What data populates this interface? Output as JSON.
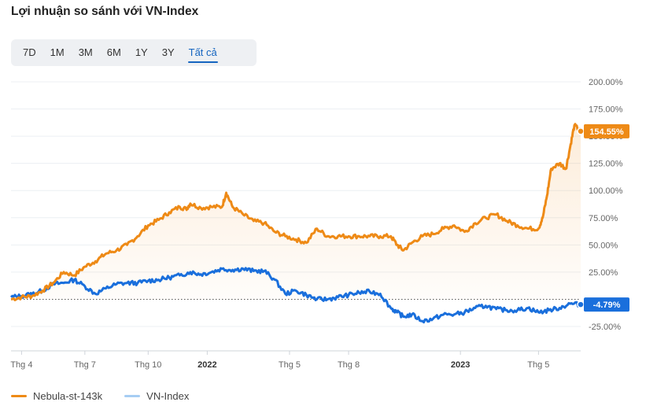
{
  "title": "Lợi nhuận so sánh với VN-Index",
  "range_selector": {
    "options": [
      "7D",
      "1M",
      "3M",
      "6M",
      "1Y",
      "3Y",
      "Tất cả"
    ],
    "active": "Tất cả"
  },
  "colors": {
    "fund": "#ee8a16",
    "index": "#1a6fdc",
    "index_legend": "#a6cdf3",
    "grid": "#eceff3",
    "axis_text": "#666666"
  },
  "chart_data": {
    "type": "line",
    "title": "Lợi nhuận so sánh với VN-Index",
    "y_unit": "%",
    "ylim": [
      -25,
      200
    ],
    "yticks": [
      200,
      175,
      150,
      125,
      100,
      75,
      50,
      25,
      -25
    ],
    "ytick_labels": [
      "200.00%",
      "175.00%",
      "150.00%",
      "125.00%",
      "100.00%",
      "75.00%",
      "50.00%",
      "25.00%",
      "-25.00%"
    ],
    "xlim": [
      0,
      27
    ],
    "x_unit": "months since Apr 2021",
    "xticks": [
      {
        "x": 0.5,
        "label": "Thg 4",
        "bold": false
      },
      {
        "x": 3.5,
        "label": "Thg 7",
        "bold": false
      },
      {
        "x": 6.5,
        "label": "Thg 10",
        "bold": false
      },
      {
        "x": 9.3,
        "label": "2022",
        "bold": true
      },
      {
        "x": 13.2,
        "label": "Thg 5",
        "bold": false
      },
      {
        "x": 16.0,
        "label": "Thg 8",
        "bold": false
      },
      {
        "x": 21.3,
        "label": "2023",
        "bold": true
      },
      {
        "x": 25.0,
        "label": "Thg 5",
        "bold": false
      }
    ],
    "baseline": 0,
    "series": [
      {
        "name": "Nebula-st-143k",
        "end_label": "154.55%",
        "points": [
          [
            0,
            0
          ],
          [
            0.5,
            2
          ],
          [
            1,
            3
          ],
          [
            1.5,
            8
          ],
          [
            2,
            15
          ],
          [
            2.5,
            25
          ],
          [
            3,
            22
          ],
          [
            3.5,
            30
          ],
          [
            4,
            35
          ],
          [
            4.5,
            42
          ],
          [
            5,
            45
          ],
          [
            5.5,
            50
          ],
          [
            6,
            58
          ],
          [
            6.5,
            68
          ],
          [
            7,
            73
          ],
          [
            7.5,
            80
          ],
          [
            8,
            85
          ],
          [
            8.3,
            83
          ],
          [
            8.5,
            88
          ],
          [
            9,
            84
          ],
          [
            9.5,
            85
          ],
          [
            10,
            85
          ],
          [
            10.2,
            98
          ],
          [
            10.5,
            85
          ],
          [
            11,
            78
          ],
          [
            11.5,
            72
          ],
          [
            12,
            70
          ],
          [
            12.5,
            62
          ],
          [
            13,
            58
          ],
          [
            13.5,
            55
          ],
          [
            14,
            52
          ],
          [
            14.5,
            65
          ],
          [
            15,
            58
          ],
          [
            15.5,
            58
          ],
          [
            16,
            58
          ],
          [
            16.5,
            58
          ],
          [
            17,
            58
          ],
          [
            17.5,
            58
          ],
          [
            18,
            58
          ],
          [
            18.3,
            50
          ],
          [
            18.6,
            45
          ],
          [
            19,
            52
          ],
          [
            19.5,
            58
          ],
          [
            20,
            60
          ],
          [
            20.5,
            65
          ],
          [
            21,
            68
          ],
          [
            21.5,
            62
          ],
          [
            22,
            70
          ],
          [
            22.5,
            75
          ],
          [
            23,
            78
          ],
          [
            23.5,
            72
          ],
          [
            24,
            68
          ],
          [
            24.5,
            65
          ],
          [
            25,
            65
          ],
          [
            25.2,
            75
          ],
          [
            25.4,
            95
          ],
          [
            25.6,
            120
          ],
          [
            26,
            125
          ],
          [
            26.3,
            120
          ],
          [
            26.5,
            140
          ],
          [
            26.7,
            160
          ],
          [
            27,
            154.55
          ]
        ]
      },
      {
        "name": "VN-Index",
        "end_label": "-4.79%",
        "points": [
          [
            0,
            2
          ],
          [
            0.5,
            3
          ],
          [
            1,
            5
          ],
          [
            1.5,
            8
          ],
          [
            2,
            14
          ],
          [
            2.5,
            15
          ],
          [
            3,
            18
          ],
          [
            3.5,
            12
          ],
          [
            4,
            5
          ],
          [
            4.5,
            10
          ],
          [
            5,
            14
          ],
          [
            5.5,
            15
          ],
          [
            6,
            15
          ],
          [
            6.5,
            17
          ],
          [
            7,
            18
          ],
          [
            7.5,
            20
          ],
          [
            8,
            22
          ],
          [
            8.5,
            25
          ],
          [
            9,
            23
          ],
          [
            9.5,
            25
          ],
          [
            10,
            28
          ],
          [
            10.5,
            27
          ],
          [
            11,
            28
          ],
          [
            11.5,
            26
          ],
          [
            12,
            26
          ],
          [
            12.5,
            18
          ],
          [
            13,
            5
          ],
          [
            13.5,
            8
          ],
          [
            14,
            4
          ],
          [
            14.5,
            0
          ],
          [
            15,
            0
          ],
          [
            15.5,
            2
          ],
          [
            16,
            4
          ],
          [
            16.5,
            6
          ],
          [
            17,
            7
          ],
          [
            17.5,
            5
          ],
          [
            18,
            -8
          ],
          [
            18.3,
            -12
          ],
          [
            18.6,
            -16
          ],
          [
            19,
            -14
          ],
          [
            19.5,
            -20
          ],
          [
            20,
            -18
          ],
          [
            20.5,
            -14
          ],
          [
            21,
            -14
          ],
          [
            21.5,
            -12
          ],
          [
            22,
            -8
          ],
          [
            22.5,
            -6
          ],
          [
            23,
            -9
          ],
          [
            23.5,
            -10
          ],
          [
            24,
            -10
          ],
          [
            24.5,
            -8
          ],
          [
            25,
            -12
          ],
          [
            25.5,
            -10
          ],
          [
            26,
            -8
          ],
          [
            26.5,
            -4
          ],
          [
            27,
            -4.79
          ]
        ]
      }
    ]
  },
  "legend": [
    {
      "label": "Nebula-st-143k",
      "color": "#ee8a16"
    },
    {
      "label": "VN-Index",
      "color": "#a6cdf3"
    }
  ]
}
